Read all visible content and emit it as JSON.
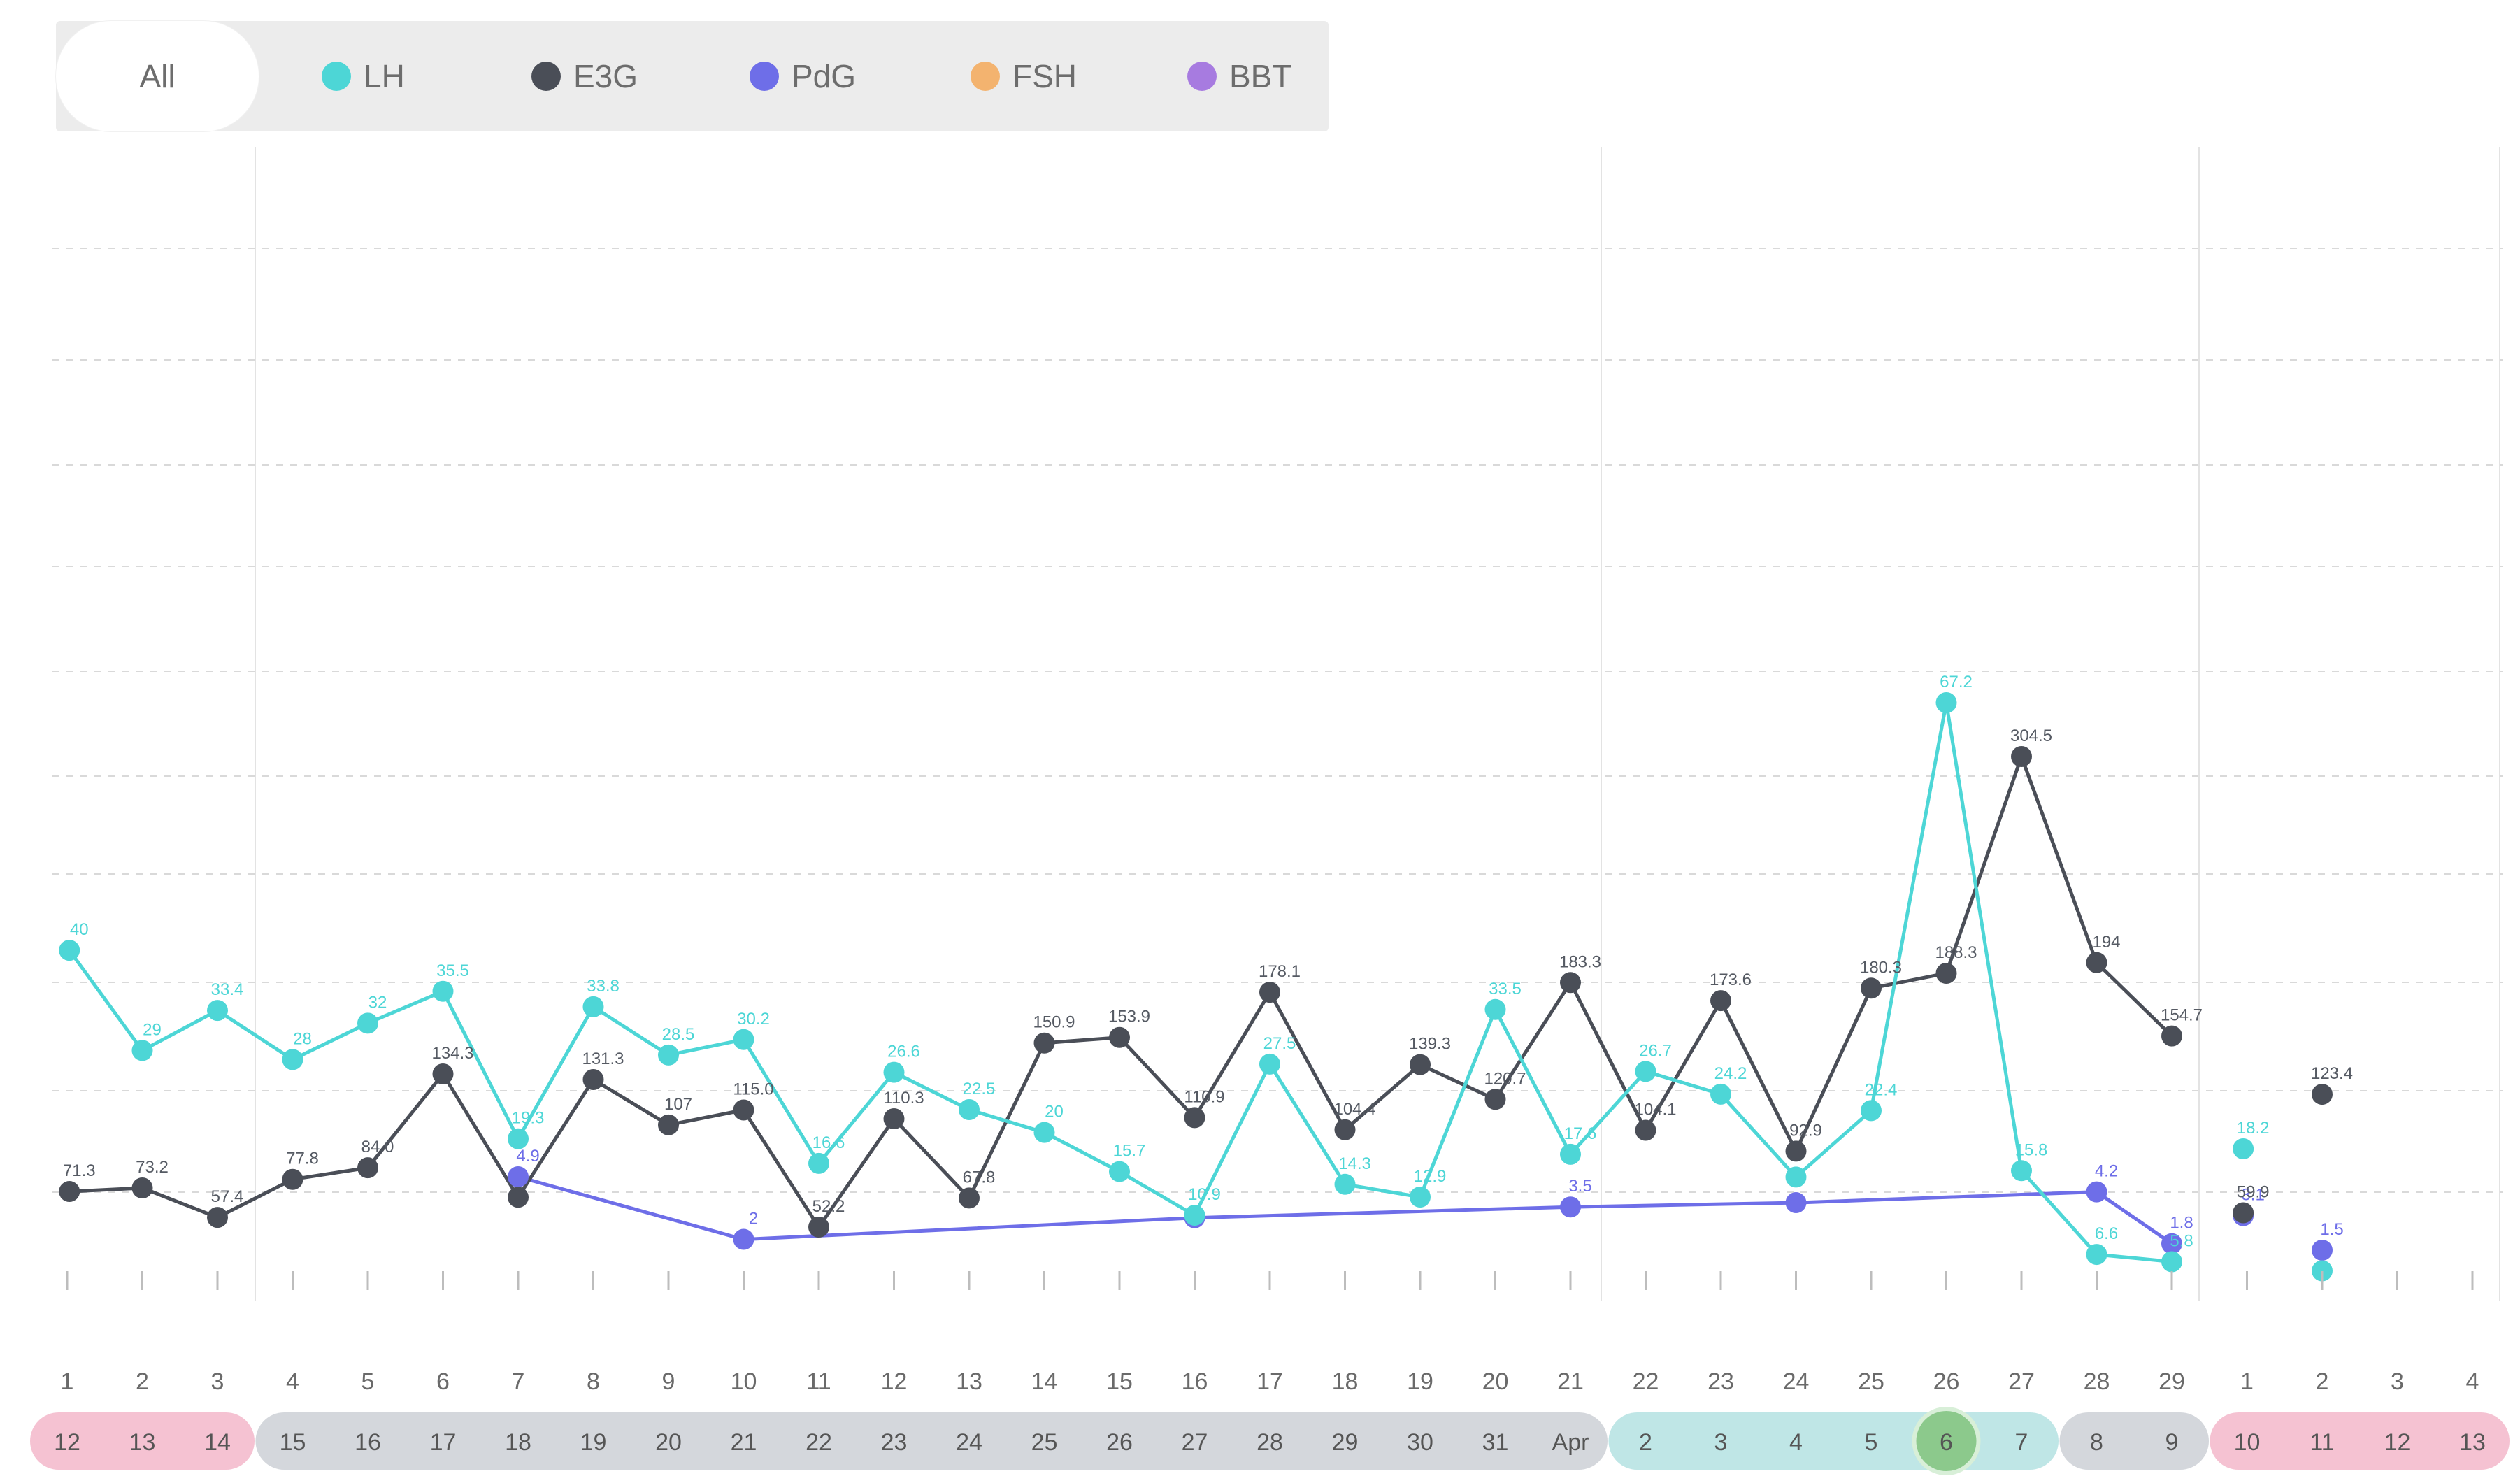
{
  "legend": {
    "all_label": "All",
    "items": [
      {
        "label": "LH",
        "color": "#4dd6d6"
      },
      {
        "label": "E3G",
        "color": "#4a4e57"
      },
      {
        "label": "PdG",
        "color": "#6e6ee8"
      },
      {
        "label": "FSH",
        "color": "#f3b36f"
      },
      {
        "label": "BBT",
        "color": "#a77be0"
      }
    ]
  },
  "chart_data": {
    "type": "line",
    "x": [
      "1",
      "2",
      "3",
      "4",
      "5",
      "6",
      "7",
      "8",
      "9",
      "10",
      "11",
      "12",
      "13",
      "14",
      "15",
      "16",
      "17",
      "18",
      "19",
      "20",
      "21",
      "22",
      "23",
      "24",
      "25",
      "26",
      "27",
      "28",
      "29",
      "1",
      "2",
      "3",
      "4"
    ],
    "date_band": [
      {
        "label": "12",
        "phase": "period"
      },
      {
        "label": "13",
        "phase": "period"
      },
      {
        "label": "14",
        "phase": "period"
      },
      {
        "label": "15",
        "phase": "low"
      },
      {
        "label": "16",
        "phase": "low"
      },
      {
        "label": "17",
        "phase": "low"
      },
      {
        "label": "18",
        "phase": "low"
      },
      {
        "label": "19",
        "phase": "low"
      },
      {
        "label": "20",
        "phase": "low"
      },
      {
        "label": "21",
        "phase": "low"
      },
      {
        "label": "22",
        "phase": "low"
      },
      {
        "label": "23",
        "phase": "low"
      },
      {
        "label": "24",
        "phase": "low"
      },
      {
        "label": "25",
        "phase": "low"
      },
      {
        "label": "26",
        "phase": "low"
      },
      {
        "label": "27",
        "phase": "low"
      },
      {
        "label": "28",
        "phase": "low"
      },
      {
        "label": "29",
        "phase": "low"
      },
      {
        "label": "30",
        "phase": "low"
      },
      {
        "label": "31",
        "phase": "low"
      },
      {
        "label": "Apr",
        "phase": "low"
      },
      {
        "label": "2",
        "phase": "fertile"
      },
      {
        "label": "3",
        "phase": "fertile"
      },
      {
        "label": "4",
        "phase": "fertile"
      },
      {
        "label": "5",
        "phase": "fertile"
      },
      {
        "label": "6",
        "phase": "peak"
      },
      {
        "label": "7",
        "phase": "fertile"
      },
      {
        "label": "8",
        "phase": "low"
      },
      {
        "label": "9",
        "phase": "low"
      },
      {
        "label": "10",
        "phase": "period"
      },
      {
        "label": "11",
        "phase": "period"
      },
      {
        "label": "12",
        "phase": "period"
      },
      {
        "label": "13",
        "phase": "period"
      }
    ],
    "series": [
      {
        "name": "LH",
        "color": "#4dd6d6",
        "values": [
          null,
          null,
          null,
          null,
          null,
          null,
          null,
          null,
          null,
          null,
          null,
          null,
          null,
          null,
          null,
          null,
          null,
          null,
          null,
          null,
          null,
          null,
          null,
          null,
          null,
          null,
          null,
          null,
          null,
          null,
          null,
          null,
          null
        ],
        "points": [
          {
            "x": 0.03,
            "y": 40,
            "label": "40"
          },
          {
            "x": 1,
            "y": 29,
            "label": "29"
          },
          {
            "x": 2,
            "y": 33.4,
            "label": "33.4"
          },
          {
            "x": 3,
            "y": 28,
            "label": "28"
          },
          {
            "x": 4,
            "y": 32,
            "label": "32"
          },
          {
            "x": 5,
            "y": 35.5,
            "label": "35.5"
          },
          {
            "x": 6,
            "y": 19.3,
            "label": "19.3"
          },
          {
            "x": 7,
            "y": 33.8,
            "label": "33.8"
          },
          {
            "x": 8,
            "y": 28.5,
            "label": "28.5"
          },
          {
            "x": 9,
            "y": 30.2,
            "label": "30.2"
          },
          {
            "x": 10,
            "y": 16.6,
            "label": "16.6"
          },
          {
            "x": 11,
            "y": 26.6,
            "label": "26.6"
          },
          {
            "x": 12,
            "y": 22.5,
            "label": "22.5"
          },
          {
            "x": 13,
            "y": 20,
            "label": "20"
          },
          {
            "x": 14,
            "y": 15.7,
            "label": "15.7"
          },
          {
            "x": 15,
            "y": 10.9,
            "label": "10.9"
          },
          {
            "x": 16,
            "y": 27.5,
            "label": "27.5"
          },
          {
            "x": 17,
            "y": 14.3,
            "label": "14.3"
          },
          {
            "x": 18,
            "y": 12.9,
            "label": "12.9"
          },
          {
            "x": 19,
            "y": 33.5,
            "label": "33.5"
          },
          {
            "x": 20,
            "y": 17.6,
            "label": "17.6"
          },
          {
            "x": 21,
            "y": 26.7,
            "label": "26.7"
          },
          {
            "x": 22,
            "y": 24.2,
            "label": "24.2"
          },
          {
            "x": 23,
            "y": 15.1,
            "label": ""
          },
          {
            "x": 24,
            "y": 22.4,
            "label": "22.4"
          },
          {
            "x": 25,
            "y": 67.2,
            "label": "67.2"
          },
          {
            "x": 26,
            "y": 15.8,
            "label": "15.8"
          },
          {
            "x": 27,
            "y": 6.6,
            "label": "6.6"
          },
          {
            "x": 28,
            "y": 5.8,
            "label": "5.8"
          },
          {
            "x": 28.95,
            "y": 18.2,
            "label": "18.2"
          },
          {
            "x": 30,
            "y": 4.8,
            "label": ""
          },
          {
            "x": 32.6,
            "y": 3.7,
            "label": ""
          }
        ]
      },
      {
        "name": "E3G",
        "color": "#4a4e57",
        "points": [
          {
            "x": 0.03,
            "y": 71.3,
            "label": "71.3"
          },
          {
            "x": 1,
            "y": 73.2,
            "label": "73.2"
          },
          {
            "x": 2,
            "y": 57.4,
            "label": "57.4"
          },
          {
            "x": 3,
            "y": 77.8,
            "label": "77.8"
          },
          {
            "x": 4,
            "y": 84.0,
            "label": "84.0"
          },
          {
            "x": 5,
            "y": 134.3,
            "label": "134.3"
          },
          {
            "x": 6,
            "y": 68.2,
            "label": ""
          },
          {
            "x": 7,
            "y": 131.3,
            "label": "131.3"
          },
          {
            "x": 8,
            "y": 107,
            "label": "107"
          },
          {
            "x": 9,
            "y": 115.0,
            "label": "115.0"
          },
          {
            "x": 10,
            "y": 52.2,
            "label": "52.2"
          },
          {
            "x": 11,
            "y": 110.3,
            "label": "110.3"
          },
          {
            "x": 12,
            "y": 67.8,
            "label": "67.8"
          },
          {
            "x": 13,
            "y": 150.9,
            "label": "150.9"
          },
          {
            "x": 14,
            "y": 153.9,
            "label": "153.9"
          },
          {
            "x": 15,
            "y": 110.9,
            "label": "110.9"
          },
          {
            "x": 16,
            "y": 178.1,
            "label": "178.1"
          },
          {
            "x": 17,
            "y": 104.4,
            "label": "104.4"
          },
          {
            "x": 18,
            "y": 139.3,
            "label": "139.3"
          },
          {
            "x": 19,
            "y": 120.7,
            "label": "120.7"
          },
          {
            "x": 20,
            "y": 183.3,
            "label": "183.3"
          },
          {
            "x": 21,
            "y": 104.1,
            "label": "104.1"
          },
          {
            "x": 22,
            "y": 173.6,
            "label": "173.6"
          },
          {
            "x": 23,
            "y": 92.9,
            "label": "92.9"
          },
          {
            "x": 24,
            "y": 180.3,
            "label": "180.3"
          },
          {
            "x": 25,
            "y": 188.3,
            "label": "188.3"
          },
          {
            "x": 26,
            "y": 304.5,
            "label": "304.5"
          },
          {
            "x": 27,
            "y": 194,
            "label": "194"
          },
          {
            "x": 28,
            "y": 154.7,
            "label": "154.7"
          },
          {
            "x": 28.95,
            "y": 59.9,
            "label": "59.9"
          },
          {
            "x": 30,
            "y": 123.4,
            "label": "123.4"
          },
          {
            "x": 32.6,
            "y": 133,
            "label": ""
          }
        ]
      },
      {
        "name": "PdG",
        "color": "#6e6ee8",
        "points": [
          {
            "x": 6,
            "y": 4.9,
            "label": "4.9"
          },
          {
            "x": 9,
            "y": 2,
            "label": "2"
          },
          {
            "x": 15,
            "y": 3.0,
            "label": ""
          },
          {
            "x": 20,
            "y": 3.5,
            "label": "3.5"
          },
          {
            "x": 23,
            "y": 3.7,
            "label": ""
          },
          {
            "x": 27,
            "y": 4.2,
            "label": "4.2"
          },
          {
            "x": 28,
            "y": 1.8,
            "label": "1.8"
          },
          {
            "x": 28.95,
            "y": 3.1,
            "label": "3.1"
          },
          {
            "x": 30,
            "y": 1.5,
            "label": "1.5"
          },
          {
            "x": 32.6,
            "y": 1.8,
            "label": ""
          }
        ]
      }
    ],
    "selected_day": "6",
    "grid": true
  }
}
